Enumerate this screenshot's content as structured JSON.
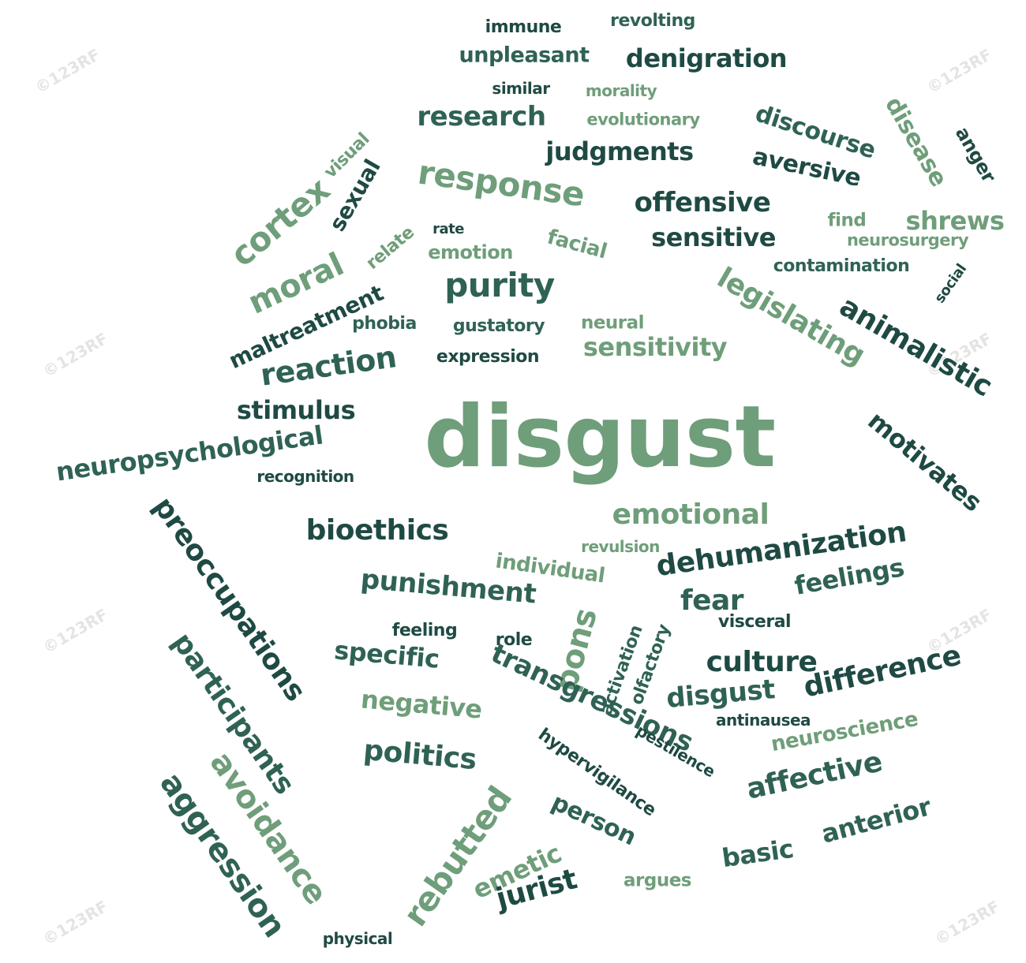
{
  "watermark": {
    "text": "123RF",
    "symbol": "©"
  },
  "colors": {
    "dark": "#1f4a44",
    "mid": "#2f6255",
    "light": "#6f9e7a"
  },
  "words": [
    {
      "text": "disgust",
      "color": "light",
      "rotate": 0
    },
    {
      "text": "immune",
      "color": "dark",
      "rotate": 0
    },
    {
      "text": "revolting",
      "color": "mid",
      "rotate": 0
    },
    {
      "text": "unpleasant",
      "color": "mid",
      "rotate": 0
    },
    {
      "text": "denigration",
      "color": "dark",
      "rotate": 0
    },
    {
      "text": "similar",
      "color": "dark",
      "rotate": 0
    },
    {
      "text": "morality",
      "color": "light",
      "rotate": 0
    },
    {
      "text": "research",
      "color": "mid",
      "rotate": 0
    },
    {
      "text": "evolutionary",
      "color": "light",
      "rotate": 0
    },
    {
      "text": "discourse",
      "color": "mid",
      "rotate": 18
    },
    {
      "text": "disease",
      "color": "light",
      "rotate": 60
    },
    {
      "text": "anger",
      "color": "dark",
      "rotate": 60
    },
    {
      "text": "judgments",
      "color": "dark",
      "rotate": 0
    },
    {
      "text": "aversive",
      "color": "dark",
      "rotate": 12
    },
    {
      "text": "visual",
      "color": "light",
      "rotate": -45
    },
    {
      "text": "sexual",
      "color": "dark",
      "rotate": -60
    },
    {
      "text": "cortex",
      "color": "light",
      "rotate": -40
    },
    {
      "text": "response",
      "color": "light",
      "rotate": 8
    },
    {
      "text": "offensive",
      "color": "dark",
      "rotate": 0
    },
    {
      "text": "find",
      "color": "light",
      "rotate": 0
    },
    {
      "text": "shrews",
      "color": "light",
      "rotate": 0
    },
    {
      "text": "neurosurgery",
      "color": "light",
      "rotate": 0
    },
    {
      "text": "rate",
      "color": "dark",
      "rotate": 0
    },
    {
      "text": "relate",
      "color": "light",
      "rotate": -40
    },
    {
      "text": "sensitive",
      "color": "dark",
      "rotate": 0
    },
    {
      "text": "emotion",
      "color": "light",
      "rotate": 0
    },
    {
      "text": "facial",
      "color": "light",
      "rotate": 15
    },
    {
      "text": "contamination",
      "color": "mid",
      "rotate": 0
    },
    {
      "text": "social",
      "color": "dark",
      "rotate": -55
    },
    {
      "text": "moral",
      "color": "light",
      "rotate": -25
    },
    {
      "text": "purity",
      "color": "mid",
      "rotate": 0
    },
    {
      "text": "legislating",
      "color": "light",
      "rotate": 30
    },
    {
      "text": "animalistic",
      "color": "dark",
      "rotate": 30
    },
    {
      "text": "maltreatment",
      "color": "dark",
      "rotate": -25
    },
    {
      "text": "phobia",
      "color": "mid",
      "rotate": 0
    },
    {
      "text": "gustatory",
      "color": "mid",
      "rotate": 0
    },
    {
      "text": "neural",
      "color": "light",
      "rotate": 0
    },
    {
      "text": "reaction",
      "color": "mid",
      "rotate": -8
    },
    {
      "text": "expression",
      "color": "dark",
      "rotate": 0
    },
    {
      "text": "sensitivity",
      "color": "light",
      "rotate": 0
    },
    {
      "text": "stimulus",
      "color": "dark",
      "rotate": 0
    },
    {
      "text": "motivates",
      "color": "dark",
      "rotate": 40
    },
    {
      "text": "neuropsychological",
      "color": "mid",
      "rotate": -8
    },
    {
      "text": "recognition",
      "color": "dark",
      "rotate": 0
    },
    {
      "text": "preoccupations",
      "color": "dark",
      "rotate": 55
    },
    {
      "text": "bioethics",
      "color": "dark",
      "rotate": 0
    },
    {
      "text": "emotional",
      "color": "light",
      "rotate": 0
    },
    {
      "text": "revulsion",
      "color": "light",
      "rotate": 0
    },
    {
      "text": "dehumanization",
      "color": "dark",
      "rotate": -8
    },
    {
      "text": "individual",
      "color": "light",
      "rotate": 8
    },
    {
      "text": "punishment",
      "color": "mid",
      "rotate": 5
    },
    {
      "text": "feelings",
      "color": "mid",
      "rotate": -10
    },
    {
      "text": "fear",
      "color": "mid",
      "rotate": 0
    },
    {
      "text": "participants",
      "color": "mid",
      "rotate": 55
    },
    {
      "text": "feeling",
      "color": "dark",
      "rotate": 0
    },
    {
      "text": "role",
      "color": "dark",
      "rotate": 0
    },
    {
      "text": "pons",
      "color": "light",
      "rotate": -75
    },
    {
      "text": "specific",
      "color": "mid",
      "rotate": 5
    },
    {
      "text": "visceral",
      "color": "dark",
      "rotate": 0
    },
    {
      "text": "activation",
      "color": "mid",
      "rotate": -70
    },
    {
      "text": "olfactory",
      "color": "mid",
      "rotate": -70
    },
    {
      "text": "culture",
      "color": "dark",
      "rotate": 0
    },
    {
      "text": "difference",
      "color": "dark",
      "rotate": -12
    },
    {
      "text": "transgressions",
      "color": "mid",
      "rotate": 25
    },
    {
      "text": "disgust",
      "color": "mid",
      "rotate": -5
    },
    {
      "text": "negative",
      "color": "light",
      "rotate": 5
    },
    {
      "text": "antinausea",
      "color": "dark",
      "rotate": 0
    },
    {
      "text": "neuroscience",
      "color": "light",
      "rotate": -10
    },
    {
      "text": "pestilence",
      "color": "dark",
      "rotate": 30
    },
    {
      "text": "avoidance",
      "color": "light",
      "rotate": 55
    },
    {
      "text": "aggression",
      "color": "mid",
      "rotate": 55
    },
    {
      "text": "politics",
      "color": "mid",
      "rotate": 5
    },
    {
      "text": "hypervigilance",
      "color": "dark",
      "rotate": 35
    },
    {
      "text": "affective",
      "color": "mid",
      "rotate": -12
    },
    {
      "text": "person",
      "color": "mid",
      "rotate": 25
    },
    {
      "text": "basic",
      "color": "mid",
      "rotate": -8
    },
    {
      "text": "anterior",
      "color": "mid",
      "rotate": -15
    },
    {
      "text": "rebutted",
      "color": "light",
      "rotate": -55
    },
    {
      "text": "emetic",
      "color": "light",
      "rotate": -25
    },
    {
      "text": "jurist",
      "color": "dark",
      "rotate": -15
    },
    {
      "text": "argues",
      "color": "light",
      "rotate": 0
    },
    {
      "text": "physical",
      "color": "dark",
      "rotate": 0
    }
  ]
}
